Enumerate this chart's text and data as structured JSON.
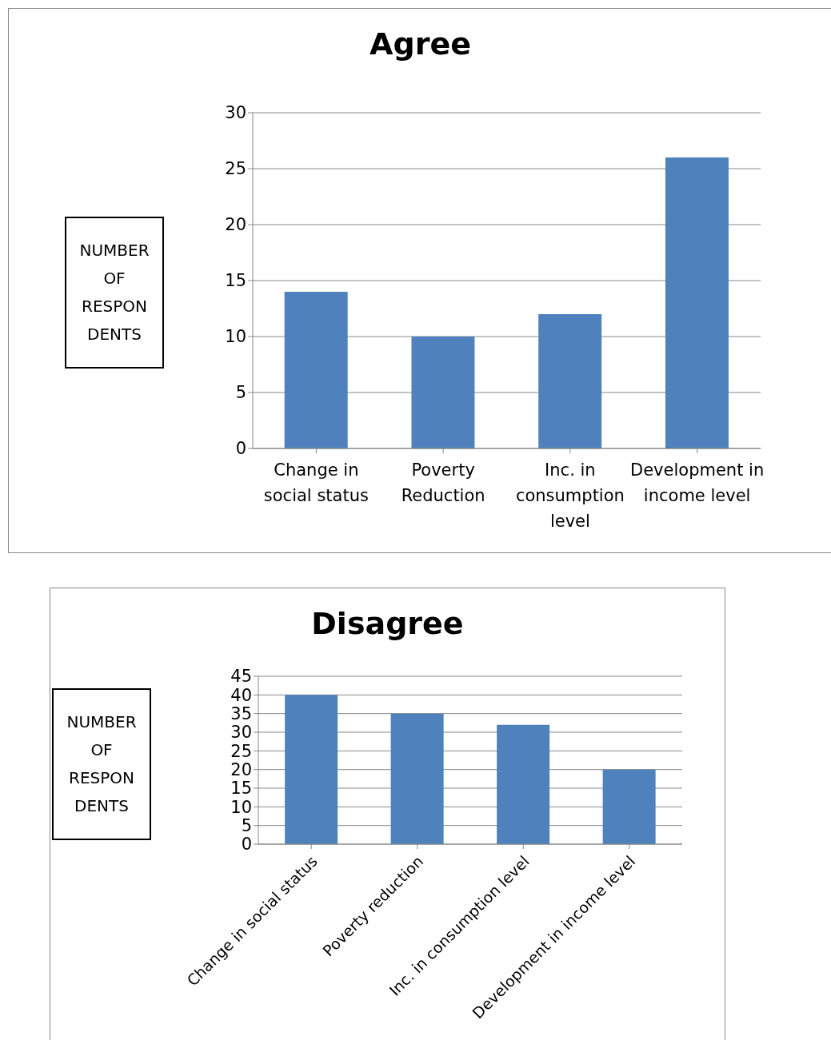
{
  "chart_data": [
    {
      "type": "bar",
      "title": "Agree",
      "ylabel": "NUMBER OF RESPON DENTS",
      "categories": [
        "Change in social status",
        "Poverty Reduction",
        "Inc. in consumption level",
        "Development in income level"
      ],
      "values": [
        14,
        10,
        12,
        26
      ],
      "color": "#4f81bd",
      "ylim": [
        0,
        30
      ],
      "yticks": [
        0,
        5,
        10,
        15,
        20,
        25,
        30
      ],
      "grid": "y"
    },
    {
      "type": "bar",
      "title": "Disagree",
      "ylabel": "NUMBER OF RESPON DENTS",
      "categories": [
        "Change in social status",
        "Poverty reduction",
        "Inc. in consumption level",
        "Development in income level"
      ],
      "values": [
        40,
        35,
        32,
        20
      ],
      "color": "#4f81bd",
      "ylim": [
        0,
        45
      ],
      "yticks": [
        0,
        5,
        10,
        15,
        20,
        25,
        30,
        35,
        40,
        45
      ],
      "grid": "y"
    }
  ]
}
